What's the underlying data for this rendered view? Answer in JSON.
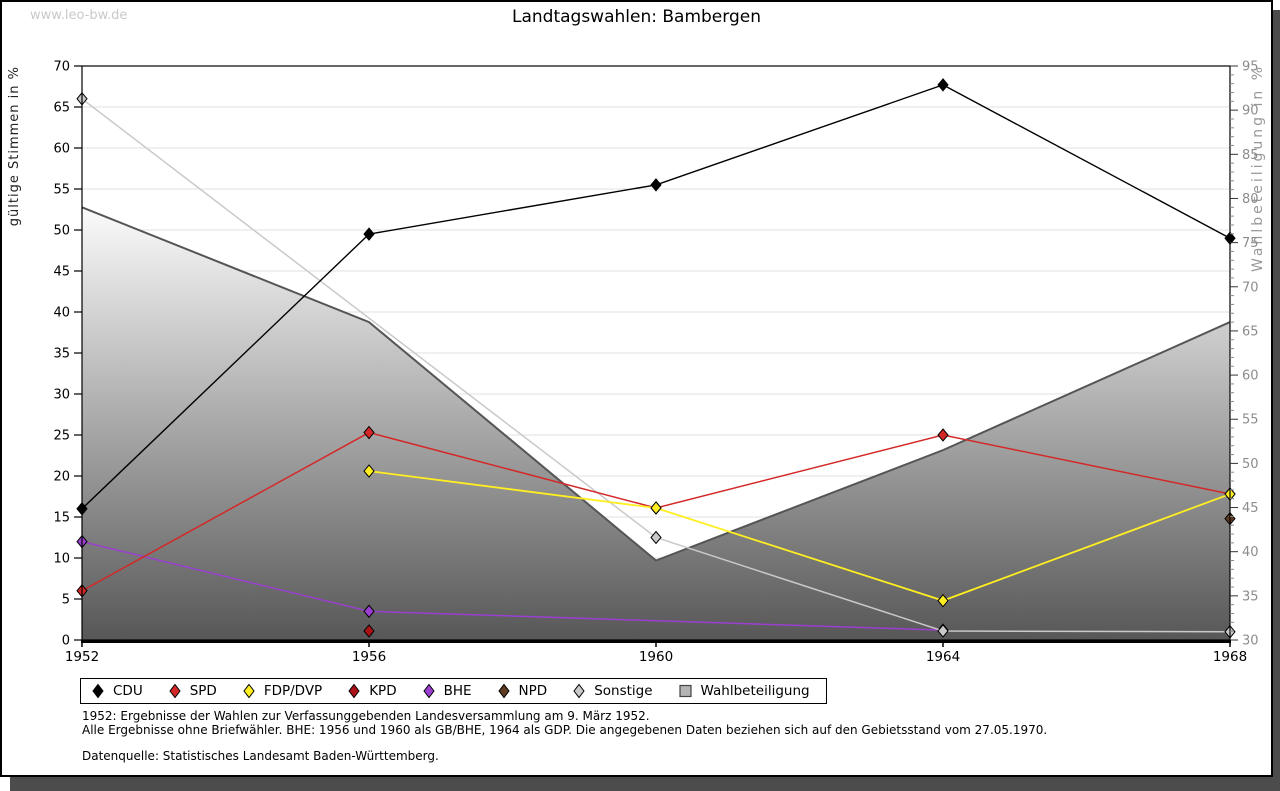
{
  "watermark": "www.leo-bw.de",
  "title": "Landtagswahlen: Bambergen",
  "axes": {
    "left_label": "gültige Stimmen in %",
    "right_label": "Wahlbeteiligung in %"
  },
  "chart_data": {
    "type": "line",
    "title": "Landtagswahlen: Bambergen",
    "x": [
      1952,
      1956,
      1960,
      1964,
      1968
    ],
    "y_left": {
      "label": "gültige Stimmen in %",
      "min": 0,
      "max": 70,
      "tick_step": 5
    },
    "y_right": {
      "label": "Wahlbeteiligung in %",
      "min": 30,
      "max": 95,
      "tick_step": 5,
      "minor_tick_step": 1
    },
    "grid": "horizontal",
    "legend_position": "bottom",
    "series": [
      {
        "name": "CDU",
        "axis": "left",
        "marker": "diamond",
        "color": "#000000",
        "values": [
          16,
          49.5,
          55.5,
          67.7,
          49
        ]
      },
      {
        "name": "SPD",
        "axis": "left",
        "marker": "diamond",
        "color": "#d42828",
        "values": [
          6,
          25.3,
          16.1,
          25,
          17.8
        ]
      },
      {
        "name": "FDP/DVP",
        "axis": "left",
        "marker": "diamond",
        "color": "#ffee22",
        "values": [
          null,
          20.6,
          16.1,
          4.8,
          17.8
        ]
      },
      {
        "name": "KPD",
        "axis": "left",
        "marker": "diamond",
        "color": "#aa1218",
        "values": [
          null,
          1.1,
          null,
          null,
          null
        ]
      },
      {
        "name": "BHE",
        "axis": "left",
        "marker": "diamond",
        "color": "#9a3fd0",
        "values": [
          12,
          3.5,
          null,
          1.2,
          null
        ]
      },
      {
        "name": "NPD",
        "axis": "left",
        "marker": "diamond",
        "color": "#5e3a22",
        "values": [
          null,
          null,
          null,
          null,
          14.8
        ]
      },
      {
        "name": "Sonstige",
        "axis": "left",
        "marker": "diamond",
        "color": "#c9c9c9",
        "values": [
          66,
          null,
          12.5,
          1.1,
          1
        ]
      },
      {
        "name": "Wahlbeteiligung",
        "axis": "right",
        "marker": "square",
        "type": "area",
        "color": "#555555",
        "fill_gradient": [
          "#fbfbfb",
          "#575757"
        ],
        "values": [
          79,
          66,
          39,
          51.5,
          66
        ]
      }
    ]
  },
  "footnotes": [
    "1952: Ergebnisse der Wahlen zur Verfassunggebenden Landesversammlung am 9. März 1952.",
    "Alle Ergebnisse ohne Briefwähler. BHE: 1956 und 1960 als GB/BHE, 1964 als GDP. Die angegebenen Daten beziehen sich auf den Gebietsstand vom 27.05.1970.",
    "Datenquelle: Statistisches Landesamt Baden-Württemberg."
  ]
}
